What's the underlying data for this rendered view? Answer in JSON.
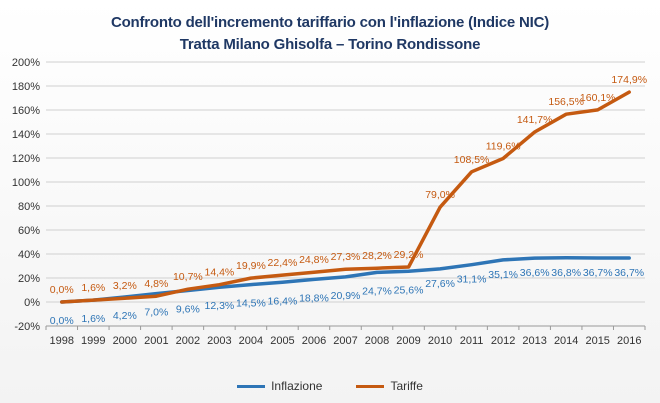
{
  "chart_data": {
    "type": "line",
    "title": "Confronto dell'incremento tariffario con l'inflazione (Indice NIC)",
    "subtitle": "Tratta Milano Ghisolfa – Torino Rondissone",
    "xlabel": "",
    "ylabel": "",
    "x": [
      "1998",
      "1999",
      "2000",
      "2001",
      "2002",
      "2003",
      "2004",
      "2005",
      "2006",
      "2007",
      "2008",
      "2009",
      "2010",
      "2011",
      "2012",
      "2013",
      "2014",
      "2015",
      "2016"
    ],
    "ylim": [
      -20,
      200
    ],
    "yticks": [
      -20,
      0,
      20,
      40,
      60,
      80,
      100,
      120,
      140,
      160,
      180,
      200
    ],
    "ytick_labels": [
      "-20%",
      "0%",
      "20%",
      "40%",
      "60%",
      "80%",
      "100%",
      "120%",
      "140%",
      "160%",
      "180%",
      "200%"
    ],
    "grid": true,
    "legend_position": "bottom",
    "series": [
      {
        "name": "Inflazione",
        "color": "#2e75b6",
        "values": [
          0.0,
          1.6,
          4.2,
          7.0,
          9.6,
          12.3,
          14.5,
          16.4,
          18.8,
          20.9,
          24.7,
          25.6,
          27.6,
          31.1,
          35.1,
          36.6,
          36.8,
          36.7,
          36.7
        ],
        "labels": [
          "0,0%",
          "1,6%",
          "4,2%",
          "7,0%",
          "9,6%",
          "12,3%",
          "14,5%",
          "16,4%",
          "18,8%",
          "20,9%",
          "24,7%",
          "25,6%",
          "27,6%",
          "31,1%",
          "35,1%",
          "36,6%",
          "36,8%",
          "36,7%",
          "36,7%"
        ]
      },
      {
        "name": "Tariffe",
        "color": "#c55a11",
        "values": [
          0.0,
          1.6,
          3.2,
          4.8,
          10.7,
          14.4,
          19.9,
          22.4,
          24.8,
          27.3,
          28.2,
          29.2,
          79.0,
          108.5,
          119.6,
          141.7,
          156.5,
          160.1,
          174.9
        ],
        "labels": [
          "0,0%",
          "1,6%",
          "3,2%",
          "4,8%",
          "10,7%",
          "14,4%",
          "19,9%",
          "22,4%",
          "24,8%",
          "27,3%",
          "28,2%",
          "29,2%",
          "79,0%",
          "108,5%",
          "119,6%",
          "141,7%",
          "156,5%",
          "160,1%",
          "174,9%"
        ]
      }
    ]
  }
}
